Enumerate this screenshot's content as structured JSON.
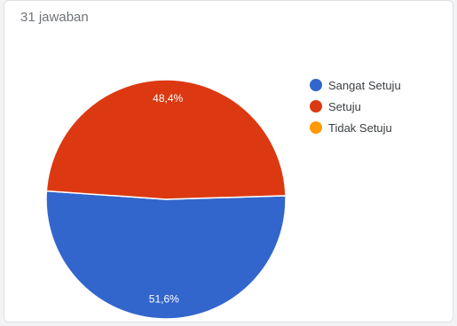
{
  "responses_label": "31 jawaban",
  "chart_data": {
    "type": "pie",
    "categories": [
      "Sangat Setuju",
      "Setuju",
      "Tidak Setuju"
    ],
    "values": [
      51.6,
      48.4,
      0
    ],
    "data_labels": [
      "51,6%",
      "48,4%",
      ""
    ],
    "colors": [
      "#3366cc",
      "#dc3912",
      "#ff9900"
    ],
    "legend_position": "right"
  }
}
